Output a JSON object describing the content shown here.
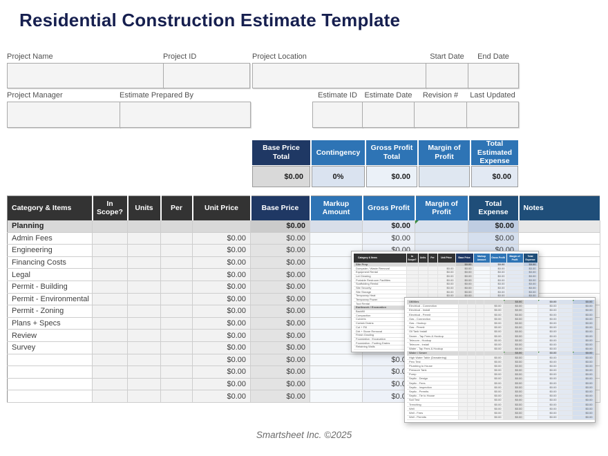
{
  "page": {
    "title": "Residential Construction Estimate Template",
    "footer": "Smartsheet Inc. ©2025"
  },
  "zero_value": "$0.00",
  "colors": {
    "title_navy": "#161f4f",
    "header_charcoal": "#333333",
    "header_navy": "#1f3864",
    "header_blue": "#2e74b5",
    "header_steel": "#1f4e79",
    "section_gray": "#d9d9d9",
    "flag_green": "#3d8b3d"
  },
  "form": {
    "fields": [
      {
        "label": "Project Name"
      },
      {
        "label": "Project ID"
      },
      {
        "label": "Project Location"
      },
      {
        "label": "Start Date"
      },
      {
        "label": "End Date"
      },
      {
        "label": "Project Manager"
      },
      {
        "label": "Estimate Prepared By"
      },
      {
        "label": "Estimate ID"
      },
      {
        "label": "Estimate Date"
      },
      {
        "label": "Revision #"
      },
      {
        "label": "Last Updated"
      }
    ]
  },
  "summary": {
    "columns": [
      {
        "header": "Base Price Total",
        "value": "$0.00"
      },
      {
        "header": "Contingency",
        "value": "0%"
      },
      {
        "header": "Gross Profit Total",
        "value": "$0.00"
      },
      {
        "header": "Margin of Profit",
        "value": ""
      },
      {
        "header": "Total Estimated Expense",
        "value": "$0.00"
      }
    ]
  },
  "main_table": {
    "headers": [
      "Category & Items",
      "In Scope?",
      "Units",
      "Per",
      "Unit Price",
      "Base Price",
      "Markup Amount",
      "Gross Profit",
      "Margin of Profit",
      "Total Expense",
      "Notes"
    ],
    "rows": [
      {
        "type": "section",
        "name": "Planning",
        "flag": true
      },
      {
        "type": "item",
        "name": "Admin Fees"
      },
      {
        "type": "item",
        "name": "Engineering"
      },
      {
        "type": "item",
        "name": "Financing Costs"
      },
      {
        "type": "item",
        "name": "Legal"
      },
      {
        "type": "item",
        "name": "Permit - Building"
      },
      {
        "type": "item",
        "name": "Permit - Environmental"
      },
      {
        "type": "item",
        "name": "Permit - Zoning"
      },
      {
        "type": "item",
        "name": "Plans + Specs"
      },
      {
        "type": "item",
        "name": "Review"
      },
      {
        "type": "item",
        "name": "Survey"
      },
      {
        "type": "item",
        "name": ""
      },
      {
        "type": "item",
        "name": ""
      },
      {
        "type": "item",
        "name": ""
      },
      {
        "type": "item",
        "name": ""
      }
    ]
  },
  "panel1": {
    "headers": [
      "Category & Items",
      "In Scope?",
      "Units",
      "Per",
      "Unit Price",
      "Base Price",
      "Markup Amount",
      "Gross Profit",
      "Margin of Profit",
      "Total Expense"
    ],
    "rows": [
      {
        "type": "section",
        "name": "Site Prep"
      },
      {
        "type": "item",
        "name": "Dumpster / Waste Removal"
      },
      {
        "type": "item",
        "name": "Equipment Rental"
      },
      {
        "type": "item",
        "name": "Lot Clearing"
      },
      {
        "type": "item",
        "name": "Portable Restroom Facilities"
      },
      {
        "type": "item",
        "name": "Scaffolding Rental"
      },
      {
        "type": "item",
        "name": "Site Security"
      },
      {
        "type": "item",
        "name": "Site Storage"
      },
      {
        "type": "item",
        "name": "Temporary Heat"
      },
      {
        "type": "item",
        "name": "Temporary Power"
      },
      {
        "type": "item",
        "name": "Tool Rental"
      },
      {
        "type": "section",
        "name": "Earthwork / Excavation"
      },
      {
        "type": "item",
        "name": "Backfill"
      },
      {
        "type": "item",
        "name": "Compaction"
      },
      {
        "type": "item",
        "name": "Culverts"
      },
      {
        "type": "item",
        "name": "Curtain Drains"
      },
      {
        "type": "item",
        "name": "Cut + Fill"
      },
      {
        "type": "item",
        "name": "Dirt + Stone Removal"
      },
      {
        "type": "item",
        "name": "Finish Grading"
      },
      {
        "type": "item",
        "name": "Foundation : Excavation"
      },
      {
        "type": "item",
        "name": "Foundation : Footing Drains"
      },
      {
        "type": "item",
        "name": "Retaining Walls"
      }
    ]
  },
  "panel2": {
    "rows": [
      {
        "type": "section",
        "name": "Utilities"
      },
      {
        "type": "item",
        "name": "Electrical - Connection"
      },
      {
        "type": "item",
        "name": "Electrical - Install"
      },
      {
        "type": "item",
        "name": "Electrical - Permit"
      },
      {
        "type": "item",
        "name": "Gas - Connection"
      },
      {
        "type": "item",
        "name": "Gas - Hookup"
      },
      {
        "type": "item",
        "name": "Gas - Permit"
      },
      {
        "type": "item",
        "name": "Oil Tank Install"
      },
      {
        "type": "item",
        "name": "Sewer - Tap Fees & Hookup"
      },
      {
        "type": "item",
        "name": "Telecom - Hookup"
      },
      {
        "type": "item",
        "name": "Telecom - Install"
      },
      {
        "type": "item",
        "name": "Water - Tap Fees & Hookup"
      },
      {
        "type": "section",
        "name": "Water / Sewer"
      },
      {
        "type": "item",
        "name": "High Water Table (Dewatering)"
      },
      {
        "type": "item",
        "name": "Perc Test"
      },
      {
        "type": "item",
        "name": "Plumbing to House"
      },
      {
        "type": "item",
        "name": "Pressure Tank"
      },
      {
        "type": "item",
        "name": "Pump"
      },
      {
        "type": "item",
        "name": "Septic - Design"
      },
      {
        "type": "item",
        "name": "Septic - Fees"
      },
      {
        "type": "item",
        "name": "Septic - Inspection"
      },
      {
        "type": "item",
        "name": "Septic - Permits"
      },
      {
        "type": "item",
        "name": "Septic - Tie to House"
      },
      {
        "type": "item",
        "name": "Soil Test"
      },
      {
        "type": "item",
        "name": "Trenching"
      },
      {
        "type": "item",
        "name": "Well"
      },
      {
        "type": "item",
        "name": "Well - Fees"
      },
      {
        "type": "item",
        "name": "Well - Permits"
      }
    ]
  }
}
